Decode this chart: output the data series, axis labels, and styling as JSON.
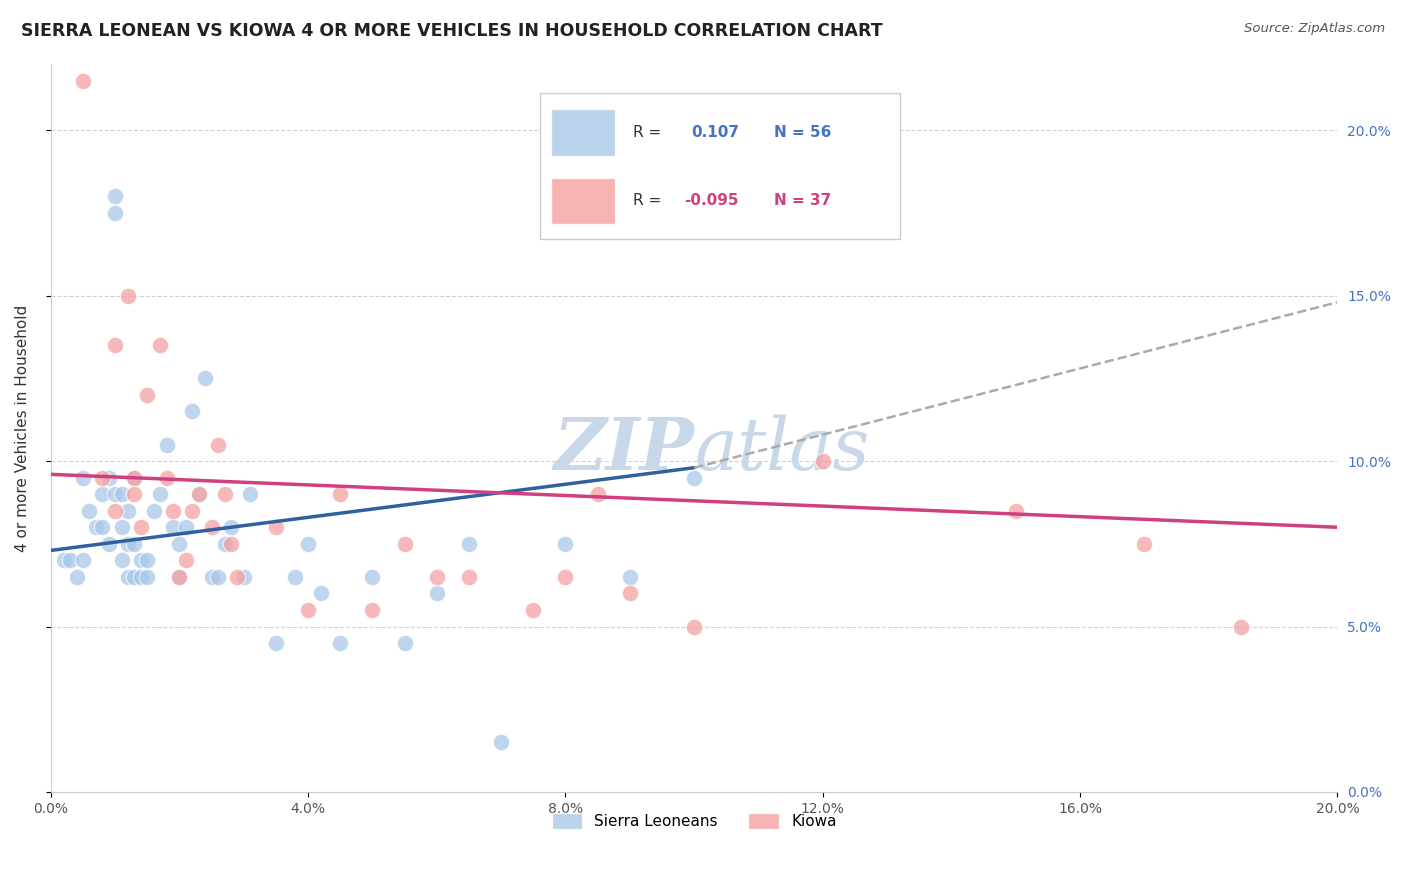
{
  "title": "SIERRA LEONEAN VS KIOWA 4 OR MORE VEHICLES IN HOUSEHOLD CORRELATION CHART",
  "source": "Source: ZipAtlas.com",
  "ylabel": "4 or more Vehicles in Household",
  "xlim": [
    0.0,
    20.0
  ],
  "ylim": [
    0.0,
    22.0
  ],
  "yticks": [
    0.0,
    5.0,
    10.0,
    15.0,
    20.0
  ],
  "xticks": [
    0.0,
    4.0,
    8.0,
    12.0,
    16.0,
    20.0
  ],
  "sierra_color": "#a8c8e8",
  "kiowa_color": "#f4a0a0",
  "sierra_line_color": "#3060a0",
  "kiowa_line_color": "#d04080",
  "watermark_color": "#c8d8e8",
  "sierra_points_x": [
    0.2,
    0.3,
    0.4,
    0.5,
    0.5,
    0.6,
    0.7,
    0.8,
    0.8,
    0.9,
    0.9,
    1.0,
    1.0,
    1.0,
    1.1,
    1.1,
    1.1,
    1.2,
    1.2,
    1.2,
    1.3,
    1.3,
    1.3,
    1.4,
    1.4,
    1.5,
    1.5,
    1.6,
    1.7,
    1.8,
    1.9,
    2.0,
    2.0,
    2.1,
    2.2,
    2.3,
    2.4,
    2.5,
    2.6,
    2.7,
    2.8,
    3.0,
    3.1,
    3.5,
    3.8,
    4.0,
    4.2,
    4.5,
    5.0,
    5.5,
    6.0,
    6.5,
    7.0,
    8.0,
    9.0,
    10.0
  ],
  "sierra_points_y": [
    7.0,
    7.0,
    6.5,
    9.5,
    7.0,
    8.5,
    8.0,
    9.0,
    8.0,
    9.5,
    7.5,
    17.5,
    9.0,
    18.0,
    9.0,
    8.0,
    7.0,
    8.5,
    7.5,
    6.5,
    9.5,
    7.5,
    6.5,
    7.0,
    6.5,
    7.0,
    6.5,
    8.5,
    9.0,
    10.5,
    8.0,
    7.5,
    6.5,
    8.0,
    11.5,
    9.0,
    12.5,
    6.5,
    6.5,
    7.5,
    8.0,
    6.5,
    9.0,
    4.5,
    6.5,
    7.5,
    6.0,
    4.5,
    6.5,
    4.5,
    6.0,
    7.5,
    1.5,
    7.5,
    6.5,
    9.5
  ],
  "kiowa_points_x": [
    0.5,
    0.8,
    1.0,
    1.0,
    1.2,
    1.3,
    1.3,
    1.4,
    1.5,
    1.7,
    1.8,
    1.9,
    2.0,
    2.1,
    2.2,
    2.3,
    2.5,
    2.6,
    2.7,
    2.8,
    2.9,
    3.5,
    4.0,
    4.5,
    5.0,
    5.5,
    6.0,
    6.5,
    7.5,
    8.0,
    8.5,
    9.0,
    10.0,
    12.0,
    15.0,
    17.0,
    18.5
  ],
  "kiowa_points_y": [
    21.5,
    9.5,
    13.5,
    8.5,
    15.0,
    9.5,
    9.0,
    8.0,
    12.0,
    13.5,
    9.5,
    8.5,
    6.5,
    7.0,
    8.5,
    9.0,
    8.0,
    10.5,
    9.0,
    7.5,
    6.5,
    8.0,
    5.5,
    9.0,
    5.5,
    7.5,
    6.5,
    6.5,
    5.5,
    6.5,
    9.0,
    6.0,
    5.0,
    10.0,
    8.5,
    7.5,
    5.0
  ],
  "sierra_trend_start_x": 0.0,
  "sierra_trend_start_y": 7.3,
  "sierra_trend_end_x": 10.0,
  "sierra_trend_end_y": 9.8,
  "sierra_dash_end_x": 20.0,
  "sierra_dash_end_y": 14.8,
  "kiowa_trend_start_x": 0.0,
  "kiowa_trend_start_y": 9.6,
  "kiowa_trend_end_x": 20.0,
  "kiowa_trend_end_y": 8.0
}
